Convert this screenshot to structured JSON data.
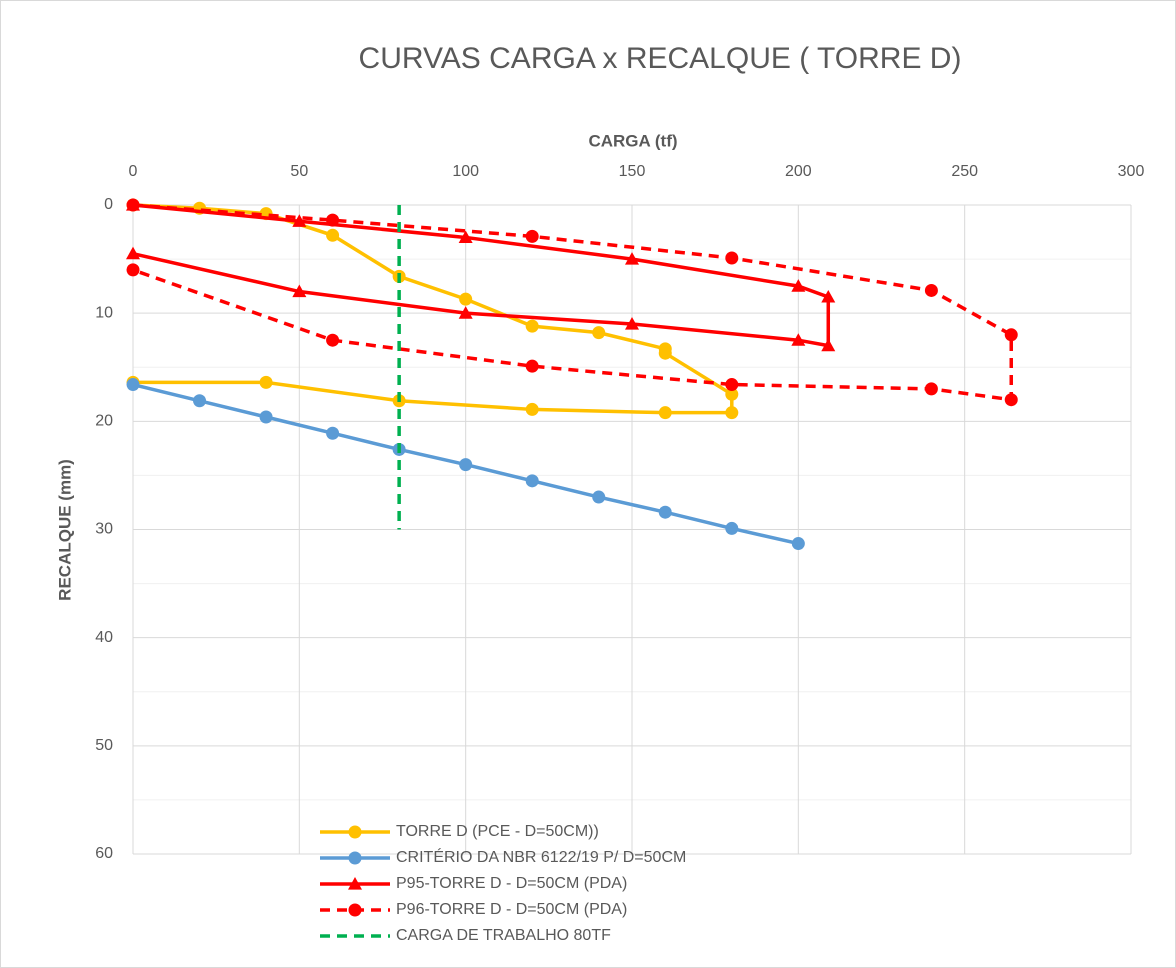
{
  "chart_data": {
    "type": "line",
    "title": "CURVAS CARGA x RECALQUE ( TORRE D)",
    "x_label": "CARGA (tf)",
    "y_label": "RECALQUE (mm)",
    "xlim": [
      0,
      300
    ],
    "xticks": [
      0,
      50,
      100,
      150,
      200,
      250,
      300
    ],
    "ylim": [
      0,
      60
    ],
    "yticks": [
      0,
      10,
      20,
      30,
      40,
      50,
      60
    ],
    "yminorticks": [
      5,
      15,
      25,
      35,
      45,
      55
    ],
    "y_reversed": true,
    "x_axis_position": "top",
    "grid": true,
    "legend": "lower left",
    "series": [
      {
        "name": "TORRE D (PCE - D=50CM))",
        "color": "#ffc000",
        "marker": "circle",
        "dash": "solid",
        "x": [
          0,
          20,
          40,
          60,
          80,
          100,
          120,
          140,
          160,
          160,
          180,
          180,
          160,
          120,
          80,
          40,
          0
        ],
        "values": [
          0,
          0.3,
          0.8,
          2.8,
          6.6,
          8.7,
          11.2,
          11.8,
          13.3,
          13.7,
          17.5,
          19.2,
          19.2,
          18.9,
          18.1,
          16.4,
          16.4
        ]
      },
      {
        "name": "CRITÉRIO DA NBR 6122/19 P/ D=50CM",
        "color": "#5b9bd5",
        "marker": "circle",
        "dash": "solid",
        "x": [
          0,
          20,
          40,
          60,
          80,
          100,
          120,
          140,
          160,
          180,
          200
        ],
        "values": [
          16.6,
          18.1,
          19.6,
          21.1,
          22.6,
          24.0,
          25.5,
          27.0,
          28.4,
          29.9,
          31.3
        ]
      },
      {
        "name": "P95-TORRE D - D=50CM (PDA)",
        "color": "#ff0000",
        "marker": "triangle",
        "dash": "solid",
        "x": [
          0,
          50,
          100,
          150,
          200,
          209,
          209,
          200,
          150,
          100,
          50,
          0
        ],
        "values": [
          0,
          1.5,
          3,
          5,
          7.5,
          8.5,
          13,
          12.5,
          11,
          10,
          8,
          4.5
        ]
      },
      {
        "name": "P96-TORRE D - D=50CM (PDA)",
        "color": "#ff0000",
        "marker": "circle",
        "dash": "dashed",
        "x": [
          0,
          60,
          120,
          180,
          240,
          264,
          264,
          240,
          180,
          120,
          60,
          0
        ],
        "values": [
          0,
          1.4,
          2.9,
          4.9,
          7.9,
          12,
          18,
          17,
          16.6,
          14.9,
          12.5,
          6
        ]
      },
      {
        "name": "CARGA DE TRABALHO 80TF",
        "color": "#00b050",
        "marker": "none",
        "dash": "dashed",
        "x": [
          80,
          80
        ],
        "values": [
          0,
          30
        ]
      }
    ]
  }
}
